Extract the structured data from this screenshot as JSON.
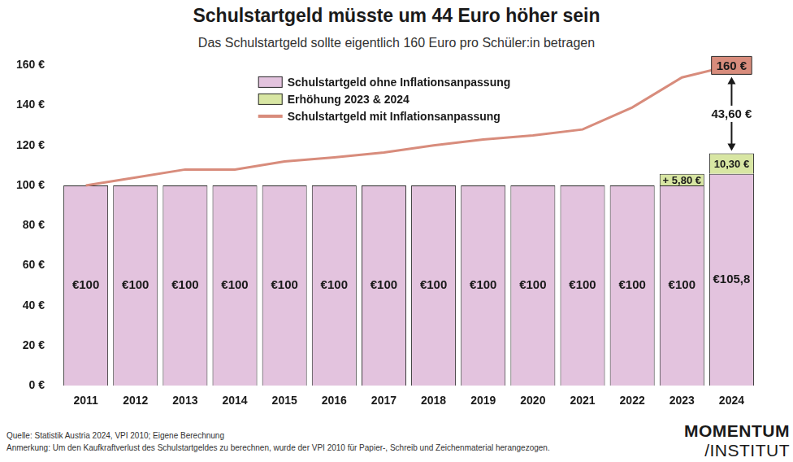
{
  "chart_data": {
    "type": "bar",
    "title": "Schulstartgeld müsste um 44 Euro höher sein",
    "subtitle": "Das Schulstartgeld sollte eigentlich 160 Euro pro Schüler:in betragen",
    "categories": [
      "2011",
      "2012",
      "2013",
      "2014",
      "2015",
      "2016",
      "2017",
      "2018",
      "2019",
      "2020",
      "2021",
      "2022",
      "2023",
      "2024"
    ],
    "series": [
      {
        "name": "Schulstartgeld ohne Inflationsanpassung",
        "type": "bar",
        "color": "#e3c3de",
        "values": [
          100,
          100,
          100,
          100,
          100,
          100,
          100,
          100,
          100,
          100,
          100,
          100,
          100,
          105.8
        ],
        "value_labels": [
          "€100",
          "€100",
          "€100",
          "€100",
          "€100",
          "€100",
          "€100",
          "€100",
          "€100",
          "€100",
          "€100",
          "€100",
          "€100",
          "€105,8"
        ]
      },
      {
        "name": "Erhöhung 2023 & 2024",
        "type": "bar",
        "color": "#d8e6a3",
        "values": [
          null,
          null,
          null,
          null,
          null,
          null,
          null,
          null,
          null,
          null,
          null,
          null,
          5.8,
          10.3
        ],
        "value_labels": [
          null,
          null,
          null,
          null,
          null,
          null,
          null,
          null,
          null,
          null,
          null,
          null,
          "+ 5,80 €",
          "10,30 €"
        ]
      },
      {
        "name": "Schulstartgeld mit Inflationsanpassung",
        "type": "line",
        "color": "#d88c7c",
        "values": [
          100,
          104,
          108,
          108,
          112,
          114,
          116.5,
          120,
          123,
          125,
          128,
          139,
          154,
          160
        ],
        "value_labels": [
          null,
          null,
          null,
          null,
          null,
          null,
          null,
          null,
          null,
          null,
          null,
          null,
          null,
          "160 €"
        ]
      }
    ],
    "ylim": [
      0,
      160
    ],
    "yticks": [
      {
        "value": 0,
        "label": "0 €"
      },
      {
        "value": 20,
        "label": "20 €"
      },
      {
        "value": 40,
        "label": "40 €"
      },
      {
        "value": 60,
        "label": "60 €"
      },
      {
        "value": 80,
        "label": "80 €"
      },
      {
        "value": 100,
        "label": "100 €"
      },
      {
        "value": 120,
        "label": "120 €"
      },
      {
        "value": 140,
        "label": "140 €"
      },
      {
        "value": 160,
        "label": "160 €"
      }
    ],
    "stacked": true,
    "grid": false,
    "legend": "top",
    "data_labels": true,
    "annotations": [
      {
        "text": "43,60 €",
        "category": "2024"
      }
    ],
    "source": "Quelle: Statistik Austria 2024, VPI 2010; Eigene Berechnung",
    "note": "Anmerkung: Um den Kaufkraftverlust des Schulstartgeldes zu berechnen,  wurde der VPI 2010 für Papier-, Schreib und Zeichenmaterial herangezogen.",
    "logo": [
      "MOMENTUM",
      "/INSTITUT"
    ]
  }
}
